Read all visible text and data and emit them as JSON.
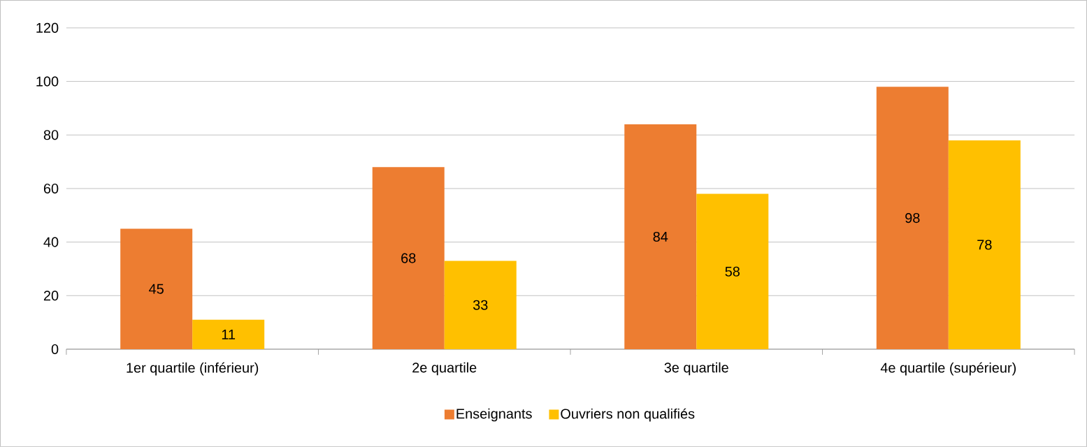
{
  "chart_data": {
    "type": "bar",
    "categories": [
      "1er quartile (inférieur)",
      "2e quartile",
      "3e quartile",
      "4e quartile (supérieur)"
    ],
    "series": [
      {
        "name": "Enseignants",
        "color": "#ed7d31",
        "values": [
          45,
          68,
          84,
          98
        ]
      },
      {
        "name": "Ouvriers non qualifiés",
        "color": "#ffc000",
        "values": [
          11,
          33,
          58,
          78
        ]
      }
    ],
    "ylim": [
      0,
      120
    ],
    "yticks": [
      0,
      20,
      40,
      60,
      80,
      100,
      120
    ],
    "grid": "y",
    "legend": "bottom",
    "data_labels": true
  }
}
